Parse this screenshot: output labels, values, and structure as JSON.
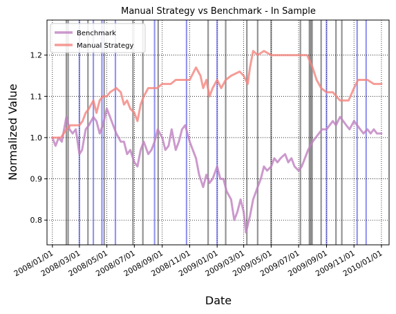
{
  "chart_data": {
    "type": "line",
    "title": "Manual Strategy vs Benchmark - In Sample",
    "xlabel": "Date",
    "ylabel": "Normalized Value",
    "xlim": [
      "2007-12-20",
      "2010-01-18"
    ],
    "ylim": [
      0.74,
      1.285
    ],
    "grid": true,
    "grid_style": "dotted",
    "legend_position": "top-left",
    "x_ticks": [
      "2008/01/01",
      "2008/03/01",
      "2008/05/01",
      "2008/07/01",
      "2008/09/01",
      "2008/11/01",
      "2009/01/01",
      "2009/03/01",
      "2009/05/01",
      "2009/07/01",
      "2009/09/01",
      "2009/11/01",
      "2010/01/01"
    ],
    "x_tick_dates": [
      "2008-01-01",
      "2008-03-01",
      "2008-05-01",
      "2008-07-01",
      "2008-09-01",
      "2008-11-01",
      "2009-01-01",
      "2009-03-01",
      "2009-05-01",
      "2009-07-01",
      "2009-09-01",
      "2009-11-01",
      "2010-01-01"
    ],
    "y_ticks": [
      0.8,
      0.9,
      1.0,
      1.1,
      1.2
    ],
    "series": [
      {
        "name": "Benchmark",
        "color": "#bf7fbf",
        "points": [
          [
            "2008-01-01",
            1.0
          ],
          [
            "2008-01-08",
            0.98
          ],
          [
            "2008-01-15",
            1.0
          ],
          [
            "2008-01-22",
            0.99
          ],
          [
            "2008-02-01",
            1.05
          ],
          [
            "2008-02-08",
            1.02
          ],
          [
            "2008-02-15",
            1.01
          ],
          [
            "2008-02-22",
            1.02
          ],
          [
            "2008-03-01",
            0.96
          ],
          [
            "2008-03-07",
            0.97
          ],
          [
            "2008-03-15",
            1.02
          ],
          [
            "2008-03-22",
            1.03
          ],
          [
            "2008-04-01",
            1.05
          ],
          [
            "2008-04-08",
            1.04
          ],
          [
            "2008-04-15",
            1.01
          ],
          [
            "2008-04-22",
            1.03
          ],
          [
            "2008-05-01",
            1.07
          ],
          [
            "2008-05-08",
            1.05
          ],
          [
            "2008-05-15",
            1.03
          ],
          [
            "2008-05-22",
            1.01
          ],
          [
            "2008-06-01",
            0.99
          ],
          [
            "2008-06-08",
            0.99
          ],
          [
            "2008-06-15",
            0.96
          ],
          [
            "2008-06-22",
            0.97
          ],
          [
            "2008-07-01",
            0.94
          ],
          [
            "2008-07-08",
            0.93
          ],
          [
            "2008-07-15",
            0.97
          ],
          [
            "2008-07-22",
            0.99
          ],
          [
            "2008-08-01",
            0.96
          ],
          [
            "2008-08-08",
            0.97
          ],
          [
            "2008-08-15",
            0.99
          ],
          [
            "2008-08-22",
            1.02
          ],
          [
            "2008-09-01",
            1.0
          ],
          [
            "2008-09-08",
            0.97
          ],
          [
            "2008-09-15",
            0.98
          ],
          [
            "2008-09-22",
            1.02
          ],
          [
            "2008-10-01",
            0.97
          ],
          [
            "2008-10-08",
            0.99
          ],
          [
            "2008-10-15",
            1.02
          ],
          [
            "2008-10-22",
            1.03
          ],
          [
            "2008-11-01",
            0.99
          ],
          [
            "2008-11-08",
            0.97
          ],
          [
            "2008-11-15",
            0.95
          ],
          [
            "2008-11-22",
            0.91
          ],
          [
            "2008-12-01",
            0.88
          ],
          [
            "2008-12-08",
            0.91
          ],
          [
            "2008-12-15",
            0.89
          ],
          [
            "2008-12-22",
            0.9
          ],
          [
            "2009-01-01",
            0.93
          ],
          [
            "2009-01-08",
            0.9
          ],
          [
            "2009-01-15",
            0.9
          ],
          [
            "2009-01-22",
            0.87
          ],
          [
            "2009-02-01",
            0.85
          ],
          [
            "2009-02-08",
            0.8
          ],
          [
            "2009-02-15",
            0.82
          ],
          [
            "2009-02-22",
            0.85
          ],
          [
            "2009-03-01",
            0.82
          ],
          [
            "2009-03-06",
            0.77
          ],
          [
            "2009-03-15",
            0.81
          ],
          [
            "2009-03-22",
            0.85
          ],
          [
            "2009-04-01",
            0.88
          ],
          [
            "2009-04-08",
            0.9
          ],
          [
            "2009-04-15",
            0.93
          ],
          [
            "2009-04-22",
            0.92
          ],
          [
            "2009-05-01",
            0.93
          ],
          [
            "2009-05-08",
            0.95
          ],
          [
            "2009-05-15",
            0.94
          ],
          [
            "2009-05-22",
            0.95
          ],
          [
            "2009-06-01",
            0.96
          ],
          [
            "2009-06-08",
            0.94
          ],
          [
            "2009-06-15",
            0.95
          ],
          [
            "2009-06-22",
            0.93
          ],
          [
            "2009-07-01",
            0.92
          ],
          [
            "2009-07-08",
            0.93
          ],
          [
            "2009-07-15",
            0.95
          ],
          [
            "2009-07-22",
            0.97
          ],
          [
            "2009-08-01",
            0.99
          ],
          [
            "2009-08-08",
            1.0
          ],
          [
            "2009-08-15",
            1.01
          ],
          [
            "2009-08-22",
            1.02
          ],
          [
            "2009-09-01",
            1.02
          ],
          [
            "2009-09-08",
            1.03
          ],
          [
            "2009-09-15",
            1.04
          ],
          [
            "2009-09-22",
            1.03
          ],
          [
            "2009-10-01",
            1.05
          ],
          [
            "2009-10-08",
            1.04
          ],
          [
            "2009-10-15",
            1.03
          ],
          [
            "2009-10-22",
            1.02
          ],
          [
            "2009-11-01",
            1.04
          ],
          [
            "2009-11-08",
            1.03
          ],
          [
            "2009-11-15",
            1.02
          ],
          [
            "2009-11-22",
            1.01
          ],
          [
            "2009-12-01",
            1.02
          ],
          [
            "2009-12-08",
            1.01
          ],
          [
            "2009-12-15",
            1.02
          ],
          [
            "2009-12-22",
            1.01
          ],
          [
            "2010-01-01",
            1.01
          ]
        ]
      },
      {
        "name": "Manual Strategy",
        "color": "#f4837d",
        "points": [
          [
            "2008-01-01",
            1.0
          ],
          [
            "2008-01-20",
            1.0
          ],
          [
            "2008-02-01",
            1.02
          ],
          [
            "2008-02-10",
            1.03
          ],
          [
            "2008-02-20",
            1.03
          ],
          [
            "2008-03-01",
            1.03
          ],
          [
            "2008-03-08",
            1.04
          ],
          [
            "2008-03-15",
            1.06
          ],
          [
            "2008-03-22",
            1.07
          ],
          [
            "2008-04-01",
            1.09
          ],
          [
            "2008-04-08",
            1.06
          ],
          [
            "2008-04-15",
            1.09
          ],
          [
            "2008-04-22",
            1.1
          ],
          [
            "2008-05-01",
            1.1
          ],
          [
            "2008-05-08",
            1.11
          ],
          [
            "2008-05-22",
            1.12
          ],
          [
            "2008-06-01",
            1.11
          ],
          [
            "2008-06-08",
            1.08
          ],
          [
            "2008-06-15",
            1.09
          ],
          [
            "2008-06-22",
            1.07
          ],
          [
            "2008-07-01",
            1.06
          ],
          [
            "2008-07-08",
            1.04
          ],
          [
            "2008-07-15",
            1.08
          ],
          [
            "2008-07-22",
            1.1
          ],
          [
            "2008-08-01",
            1.12
          ],
          [
            "2008-08-20",
            1.12
          ],
          [
            "2008-09-01",
            1.13
          ],
          [
            "2008-09-20",
            1.13
          ],
          [
            "2008-10-01",
            1.14
          ],
          [
            "2008-10-20",
            1.14
          ],
          [
            "2008-11-01",
            1.14
          ],
          [
            "2008-11-15",
            1.17
          ],
          [
            "2008-11-25",
            1.15
          ],
          [
            "2008-12-01",
            1.12
          ],
          [
            "2008-12-08",
            1.14
          ],
          [
            "2008-12-15",
            1.1
          ],
          [
            "2008-12-22",
            1.12
          ],
          [
            "2009-01-01",
            1.14
          ],
          [
            "2009-01-10",
            1.12
          ],
          [
            "2009-01-20",
            1.14
          ],
          [
            "2009-02-01",
            1.15
          ],
          [
            "2009-02-20",
            1.16
          ],
          [
            "2009-03-01",
            1.15
          ],
          [
            "2009-03-10",
            1.13
          ],
          [
            "2009-03-15",
            1.17
          ],
          [
            "2009-03-22",
            1.21
          ],
          [
            "2009-04-01",
            1.2
          ],
          [
            "2009-04-15",
            1.21
          ],
          [
            "2009-05-01",
            1.2
          ],
          [
            "2009-07-20",
            1.2
          ],
          [
            "2009-08-01",
            1.17
          ],
          [
            "2009-08-10",
            1.14
          ],
          [
            "2009-08-20",
            1.12
          ],
          [
            "2009-09-01",
            1.11
          ],
          [
            "2009-09-15",
            1.11
          ],
          [
            "2009-10-01",
            1.09
          ],
          [
            "2009-10-20",
            1.09
          ],
          [
            "2009-11-01",
            1.12
          ],
          [
            "2009-11-10",
            1.14
          ],
          [
            "2009-12-01",
            1.14
          ],
          [
            "2009-12-15",
            1.13
          ],
          [
            "2010-01-01",
            1.13
          ]
        ]
      }
    ],
    "vertical_lines": [
      {
        "color": "#0000dd",
        "dates": [
          "2008-03-01",
          "2008-04-01",
          "2008-04-20",
          "2008-05-20",
          "2008-08-15",
          "2008-10-25",
          "2009-01-01",
          "2009-09-01",
          "2009-11-08",
          "2009-11-28"
        ]
      },
      {
        "color": "#000000",
        "dates": [
          "2008-02-01",
          "2008-02-05",
          "2008-03-20",
          "2008-04-25",
          "2008-06-28",
          "2008-07-20",
          "2008-08-23",
          "2008-12-12",
          "2009-01-20",
          "2009-03-08",
          "2009-04-01",
          "2009-05-01",
          "2009-07-05",
          "2009-07-25",
          "2009-07-28",
          "2009-07-31",
          "2009-08-20",
          "2009-09-22",
          "2009-10-05"
        ]
      }
    ]
  }
}
